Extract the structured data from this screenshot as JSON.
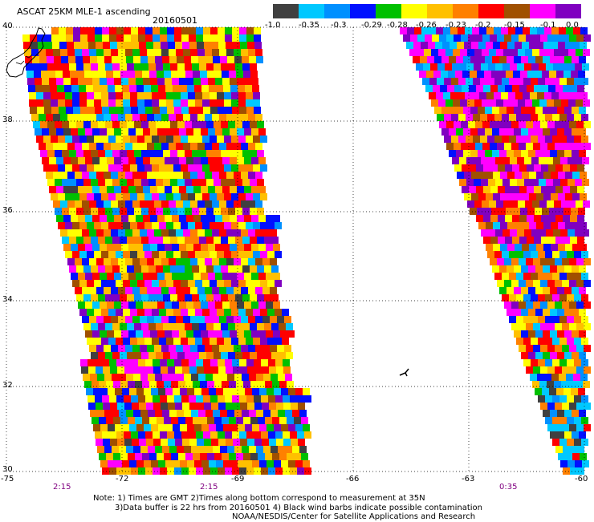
{
  "header": {
    "title": "ASCAT 25KM MLE-1 ascending",
    "date": "20160501"
  },
  "colorbar": {
    "colors": [
      "#404040",
      "#00c8ff",
      "#0090ff",
      "#0010ff",
      "#00c000",
      "#ffff00",
      "#ffc000",
      "#ff8000",
      "#ff0000",
      "#a05000",
      "#ff00ff",
      "#8000c0"
    ],
    "tick_labels": [
      "-1.0",
      "-0.35",
      "-0.3",
      "-0.29",
      "-0.28",
      "-0.26",
      "-0.23",
      "-0.2",
      "-0.15",
      "-0.1",
      "0.0"
    ]
  },
  "map": {
    "lat_labels": [
      "40",
      "38",
      "36",
      "34",
      "32",
      "30"
    ],
    "lon_labels": [
      "-75",
      "-72",
      "-69",
      "-66",
      "-63",
      "-60"
    ],
    "time_labels": [
      "2:15",
      "2:15",
      "0:35"
    ]
  },
  "notes": {
    "line1": "Note: 1) Times are GMT 2)Times along bottom correspond to measurement at 35N",
    "line2": "3)Data buffer is 22 hrs from 20160501 4) Black wind barbs indicate possible contamination",
    "line3": "NOAA/NESDIS/Center for Satellite Applications and Research"
  }
}
